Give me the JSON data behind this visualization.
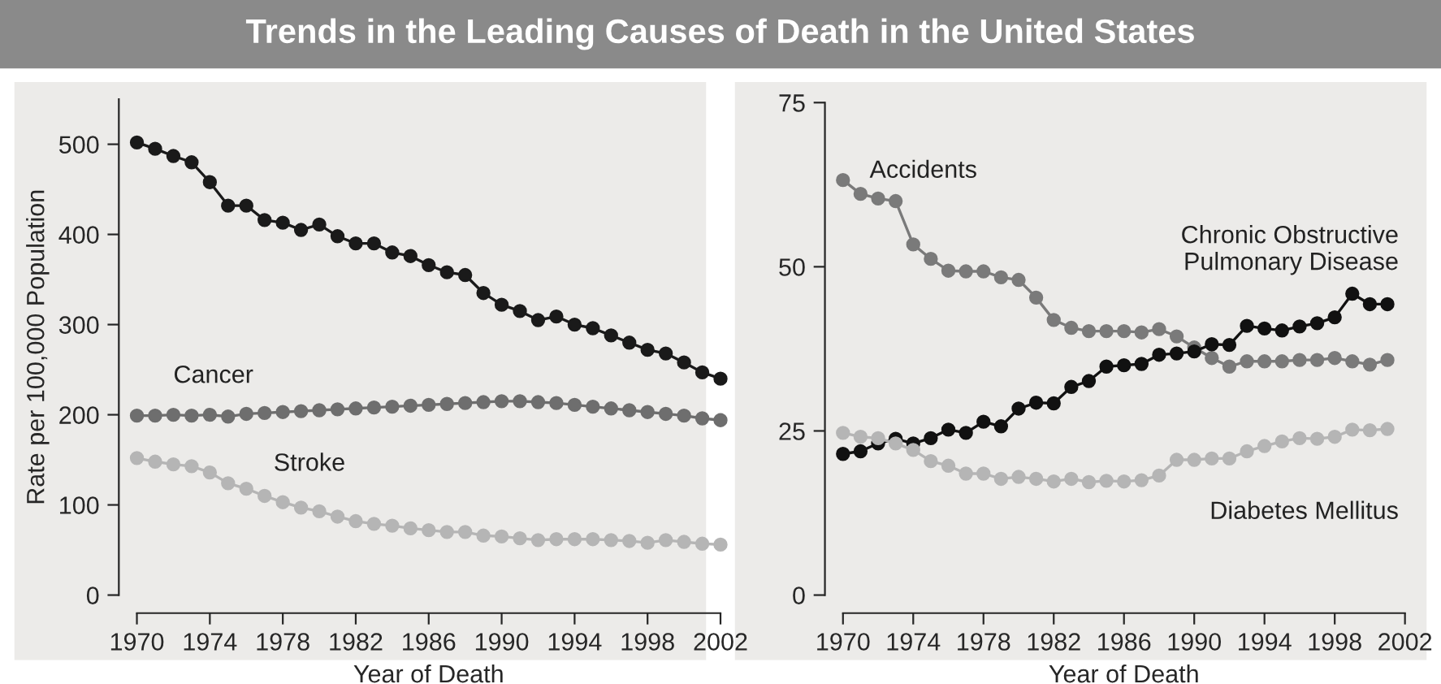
{
  "chart_data": [
    {
      "type": "line",
      "title": "Trends in the Leading Causes of Death in the United States",
      "xlabel": "Year of Death",
      "ylabel": "Rate per 100,000 Population",
      "x": [
        1970,
        1971,
        1972,
        1973,
        1974,
        1975,
        1976,
        1977,
        1978,
        1979,
        1980,
        1981,
        1982,
        1983,
        1984,
        1985,
        1986,
        1987,
        1988,
        1989,
        1990,
        1991,
        1992,
        1993,
        1994,
        1995,
        1996,
        1997,
        1998,
        1999,
        2000,
        2001,
        2002
      ],
      "xlim": [
        1970,
        2002
      ],
      "xticks": [
        1970,
        1974,
        1978,
        1982,
        1986,
        1990,
        1994,
        1998,
        2002
      ],
      "ylim": [
        0,
        550
      ],
      "yticks": [
        0,
        100,
        200,
        300,
        400,
        500
      ],
      "marker": "circle",
      "line_style": "solid",
      "grid": false,
      "legend": false,
      "series": [
        {
          "color": "#1a1a1a",
          "values": [
            502,
            495,
            487,
            480,
            458,
            432,
            432,
            416,
            413,
            405,
            411,
            398,
            390,
            390,
            380,
            376,
            366,
            358,
            355,
            335,
            322,
            315,
            305,
            309,
            300,
            296,
            288,
            280,
            272,
            268,
            258,
            247,
            240
          ]
        },
        {
          "name": "Cancer",
          "color": "#6e6e6e",
          "values": [
            199,
            199,
            200,
            199,
            200,
            198,
            201,
            202,
            203,
            204,
            205,
            206,
            207,
            208,
            209,
            210,
            211,
            212,
            213,
            214,
            215,
            215,
            214,
            213,
            211,
            209,
            207,
            205,
            203,
            201,
            199,
            196,
            194
          ]
        },
        {
          "name": "Stroke",
          "color": "#b5b5b5",
          "values": [
            152,
            148,
            145,
            143,
            136,
            124,
            118,
            110,
            103,
            97,
            93,
            87,
            82,
            79,
            77,
            74,
            72,
            70,
            70,
            66,
            65,
            63,
            61,
            62,
            62,
            62,
            61,
            60,
            58,
            61,
            59,
            57,
            56
          ]
        }
      ]
    },
    {
      "type": "line",
      "xlabel": "Year of Death",
      "x": [
        1970,
        1971,
        1972,
        1973,
        1974,
        1975,
        1976,
        1977,
        1978,
        1979,
        1980,
        1981,
        1982,
        1983,
        1984,
        1985,
        1986,
        1987,
        1988,
        1989,
        1990,
        1991,
        1992,
        1993,
        1994,
        1995,
        1996,
        1997,
        1998,
        1999,
        2000,
        2001
      ],
      "xlim": [
        1970,
        2002
      ],
      "xticks": [
        1970,
        1974,
        1978,
        1982,
        1986,
        1990,
        1994,
        1998,
        2002
      ],
      "ylim": [
        0,
        75
      ],
      "yticks": [
        0,
        25,
        50,
        75
      ],
      "marker": "circle",
      "line_style": "solid",
      "grid": false,
      "legend": false,
      "series": [
        {
          "name": "Accidents",
          "color": "#7a7a7a",
          "values": [
            63.2,
            61.1,
            60.4,
            60.0,
            53.4,
            51.2,
            49.4,
            49.3,
            49.3,
            48.4,
            48.0,
            45.3,
            41.9,
            40.7,
            40.2,
            40.2,
            40.2,
            40.0,
            40.5,
            39.4,
            37.7,
            36.1,
            34.8,
            35.6,
            35.6,
            35.6,
            35.8,
            35.8,
            36.1,
            35.6,
            35.1,
            35.8
          ]
        },
        {
          "name": "Chronic Obstructive\nPulmonary Disease",
          "color": "#111111",
          "values": [
            21.5,
            21.9,
            23.1,
            23.8,
            23.1,
            23.9,
            25.2,
            24.7,
            26.4,
            25.7,
            28.4,
            29.3,
            29.2,
            31.7,
            32.6,
            34.8,
            35.0,
            35.2,
            36.6,
            36.8,
            37.1,
            38.2,
            38.1,
            41.0,
            40.6,
            40.3,
            40.9,
            41.4,
            42.3,
            45.9,
            44.3,
            44.3
          ]
        },
        {
          "name": "Diabetes Mellitus",
          "color": "#b5b5b5",
          "values": [
            24.7,
            24.1,
            23.9,
            23.1,
            22.1,
            20.4,
            19.7,
            18.5,
            18.5,
            17.7,
            18.0,
            17.7,
            17.3,
            17.7,
            17.2,
            17.4,
            17.3,
            17.5,
            18.2,
            20.6,
            20.6,
            20.8,
            20.8,
            21.9,
            22.7,
            23.4,
            23.9,
            23.8,
            24.1,
            25.2,
            25.1,
            25.3
          ]
        }
      ]
    }
  ]
}
